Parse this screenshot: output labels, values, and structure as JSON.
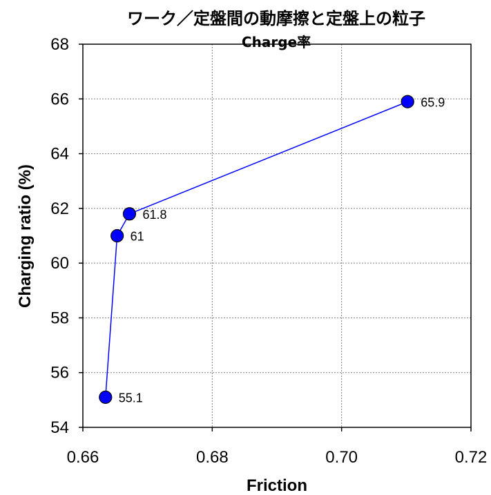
{
  "chart_data": {
    "type": "scatter",
    "title": "ワーク／定盤間の動摩擦と定盤上の粒子",
    "subtitle": "Charge率",
    "xlabel": "Friction",
    "ylabel": "Charging ratio (%)",
    "xlim": [
      0.66,
      0.72
    ],
    "ylim": [
      54,
      68
    ],
    "x_ticks": [
      "0.66",
      "0.68",
      "0.70",
      "0.72"
    ],
    "y_ticks": [
      "54",
      "56",
      "58",
      "60",
      "62",
      "64",
      "66",
      "68"
    ],
    "grid": true,
    "lines_connecting_points": true,
    "series": [
      {
        "x": [
          0.6635,
          0.6653,
          0.6672,
          0.7102
        ],
        "y": [
          55.1,
          61.0,
          61.8,
          65.9
        ],
        "labels": [
          "55.1",
          "61",
          "61.8",
          "65.9"
        ],
        "line_color": "#0000ff",
        "marker_color": "#0000ff"
      }
    ]
  }
}
